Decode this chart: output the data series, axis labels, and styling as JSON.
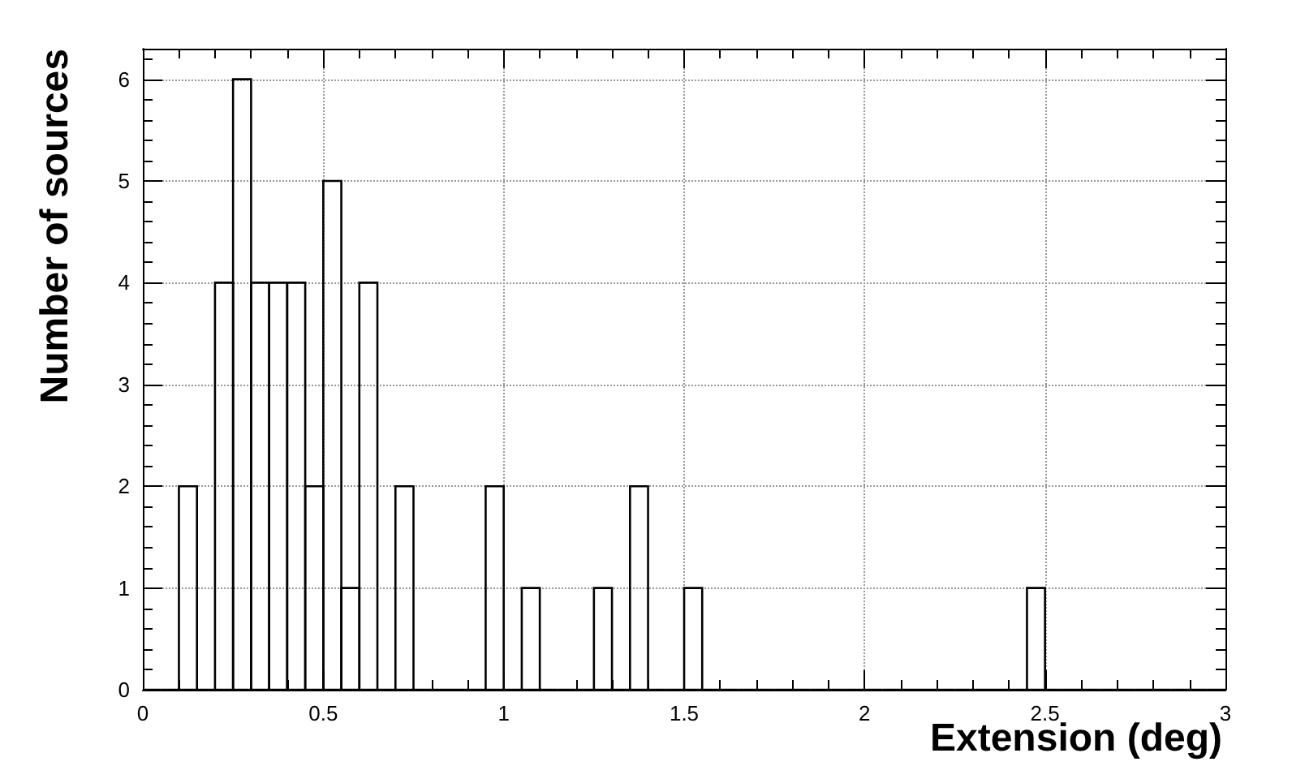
{
  "chart_data": {
    "type": "histogram",
    "xlabel": "Extension (deg)",
    "ylabel": "Number of sources",
    "bins": [
      0,
      0.05,
      0.1,
      0.15,
      0.2,
      0.25,
      0.3,
      0.35,
      0.4,
      0.45,
      0.5,
      0.55,
      0.6,
      0.65,
      0.7,
      0.75,
      0.8,
      0.85,
      0.9,
      0.95,
      1,
      1.05,
      1.1,
      1.15,
      1.2,
      1.25,
      1.3,
      1.35,
      1.4,
      1.45,
      1.5,
      1.55,
      1.6,
      1.65,
      1.7,
      1.75,
      1.8,
      1.85,
      1.9,
      1.95,
      2,
      2.05,
      2.1,
      2.15,
      2.2,
      2.25,
      2.3,
      2.35,
      2.4,
      2.45,
      2.5,
      2.55,
      2.6,
      2.65,
      2.7,
      2.75,
      2.8,
      2.85,
      2.9,
      2.95,
      3
    ],
    "values": [
      0,
      0,
      2,
      0,
      4,
      6,
      4,
      4,
      4,
      2,
      5,
      1,
      4,
      0,
      2,
      0,
      0,
      0,
      0,
      2,
      0,
      1,
      0,
      0,
      0,
      1,
      0,
      2,
      0,
      0,
      1,
      0,
      0,
      0,
      0,
      0,
      0,
      0,
      0,
      0,
      0,
      0,
      0,
      0,
      0,
      0,
      0,
      0,
      0,
      1,
      0,
      0,
      0,
      0,
      0,
      0,
      0,
      0,
      0,
      0
    ],
    "color": "#000000",
    "xlim": [
      0,
      3
    ],
    "xticks": [
      0,
      0.5,
      1,
      1.5,
      2,
      2.5,
      3
    ],
    "ylim": [
      0,
      6.3
    ],
    "yticks": [
      0,
      1,
      2,
      3,
      4,
      5,
      6
    ],
    "grid": true
  }
}
